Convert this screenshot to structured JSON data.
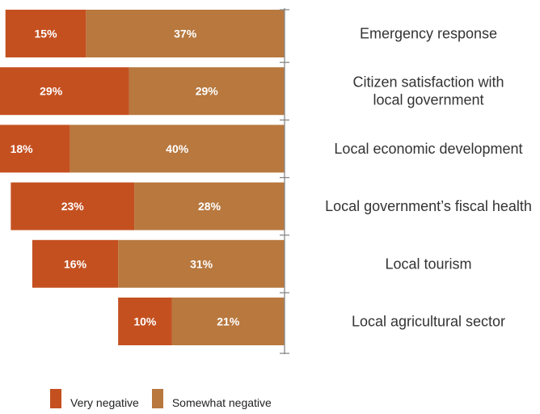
{
  "chart_data": {
    "type": "bar",
    "orientation": "horizontal-stacked",
    "categories": [
      [
        "Emergency response"
      ],
      [
        "Citizen satisfaction with",
        "local government"
      ],
      [
        "Local economic development"
      ],
      [
        "Local government’s fiscal health"
      ],
      [
        "Local tourism"
      ],
      [
        "Local agricultural sector"
      ]
    ],
    "series": [
      {
        "name": "Very negative",
        "values": [
          15,
          29,
          18,
          23,
          16,
          10
        ],
        "color": "#c45020"
      },
      {
        "name": "Somewhat negative",
        "values": [
          37,
          29,
          40,
          28,
          31,
          21
        ],
        "color": "#b8783e"
      }
    ],
    "value_suffix": "%",
    "bar_direction": "right-to-left",
    "legend_position": "bottom-left"
  }
}
